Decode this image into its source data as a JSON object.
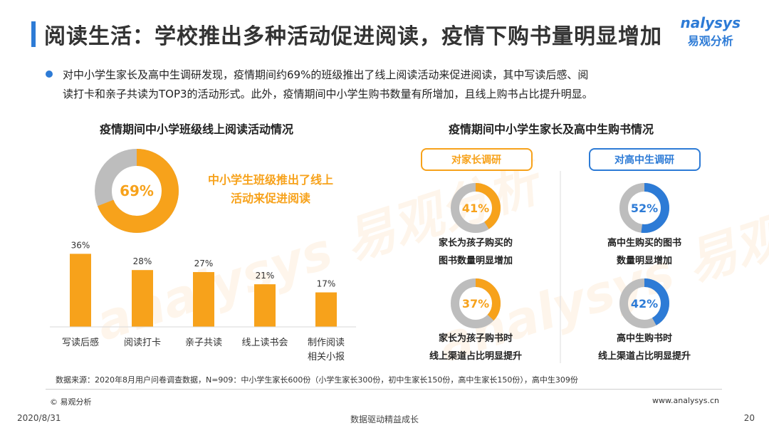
{
  "header": {
    "title": "阅读生活：学校推出多种活动促进阅读，疫情下购书量明显增加",
    "logo_en": "nalysys",
    "logo_cn": "易观分析"
  },
  "bullet": {
    "line1": "对中小学生家长及高中生调研发现，疫情期间约69%的班级推出了线上阅读活动来促进阅读，其中写读后感、阅",
    "line2": "读打卡和亲子共读为TOP3的活动形式。此外，疫情期间中小学生购书数量有所增加，且线上购书占比提升明显。"
  },
  "left_section": {
    "title": "疫情期间中小学班级线上阅读活动情况",
    "donut_label": "69%",
    "donut_caption_line1": "中小学生班级推出了线上",
    "donut_caption_line2": "活动来促进阅读"
  },
  "right_section": {
    "title": "疫情期间中小学生家长及高中生购书情况",
    "tab_parents": "对家长调研",
    "tab_highschool": "对高中生调研",
    "donuts": [
      {
        "label": "41%",
        "value": 41,
        "caption_line1": "家长为孩子购买的",
        "caption_line2": "图书数量明显增加"
      },
      {
        "label": "37%",
        "value": 37,
        "caption_line1": "家长为孩子购书时",
        "caption_line2": "线上渠道占比明显提升"
      },
      {
        "label": "52%",
        "value": 52,
        "caption_line1": "高中生购买的图书",
        "caption_line2": "数量明显增加"
      },
      {
        "label": "42%",
        "value": 42,
        "caption_line1": "高中生购书时",
        "caption_line2": "线上渠道占比明显提升"
      }
    ]
  },
  "colors": {
    "orange": "#f7a21b",
    "blue": "#2d7bd6",
    "grey": "#bdbdbd"
  },
  "chart_data": [
    {
      "type": "pie",
      "title": "疫情期间中小学班级线上阅读活动情况",
      "categories": [
        "推出线上阅读活动",
        ""
      ],
      "values": [
        69,
        31
      ]
    },
    {
      "type": "bar",
      "title": "",
      "categories": [
        "写读后感",
        "阅读打卡",
        "亲子共读",
        "线上读书会",
        "制作阅读相关小报"
      ],
      "category_lines": [
        [
          "写读后感"
        ],
        [
          "阅读打卡"
        ],
        [
          "亲子共读"
        ],
        [
          "线上读书会"
        ],
        [
          "制作阅读",
          "相关小报"
        ]
      ],
      "values": [
        36,
        28,
        27,
        21,
        17
      ],
      "value_labels": [
        "36%",
        "28%",
        "27%",
        "21%",
        "17%"
      ],
      "ylim": [
        0,
        40
      ]
    },
    {
      "type": "pie",
      "title": "疫情期间中小学生家长及高中生购书情况",
      "series": [
        {
          "group": "对家长调研",
          "values": [
            41,
            59
          ]
        },
        {
          "group": "对家长调研",
          "values": [
            37,
            63
          ]
        },
        {
          "group": "对高中生调研",
          "values": [
            52,
            48
          ]
        },
        {
          "group": "对高中生调研",
          "values": [
            42,
            58
          ]
        }
      ]
    }
  ],
  "footer": {
    "note": "数据来源：2020年8月用户问卷调查数据，N=909：中小学生家长600份（小学生家长300份，初中生家长150份，高中生家长150份），高中生309份",
    "copyright": "© 易观分析",
    "site": "www.analysys.cn",
    "date": "2020/8/31",
    "slogan": "数据驱动精益成长",
    "page": "20"
  }
}
